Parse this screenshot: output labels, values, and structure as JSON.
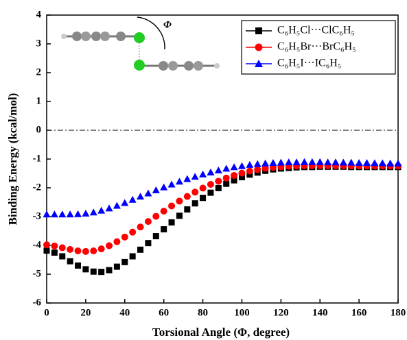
{
  "chart_data": {
    "type": "scatter",
    "xlabel": "Torsional Angle (Φ, degree)",
    "ylabel": "Binding Energy (kcal/mol)",
    "annotations": [
      "Φ"
    ],
    "reference_line": 0,
    "xlim": [
      0,
      180
    ],
    "xticks": [
      0,
      20,
      40,
      60,
      80,
      100,
      120,
      140,
      160,
      180
    ],
    "ylim": [
      -6,
      4
    ],
    "yticks": [
      -6,
      -5,
      -4,
      -3,
      -2,
      -1,
      0,
      1,
      2,
      3,
      4
    ],
    "legend": "upper right",
    "x": [
      0,
      4,
      8,
      12,
      16,
      20,
      24,
      28,
      32,
      36,
      40,
      44,
      48,
      52,
      56,
      60,
      64,
      68,
      72,
      76,
      80,
      84,
      88,
      92,
      96,
      100,
      104,
      108,
      112,
      116,
      120,
      124,
      128,
      132,
      136,
      140,
      144,
      148,
      152,
      156,
      160,
      164,
      168,
      172,
      176,
      180
    ],
    "series": [
      {
        "name": "C₆H₅Cl···ClC₆H₅",
        "color": "#000000",
        "marker": "square",
        "values": [
          -4.18,
          -4.25,
          -4.38,
          -4.55,
          -4.7,
          -4.83,
          -4.91,
          -4.92,
          -4.86,
          -4.74,
          -4.58,
          -4.38,
          -4.15,
          -3.92,
          -3.68,
          -3.44,
          -3.2,
          -2.97,
          -2.75,
          -2.54,
          -2.35,
          -2.17,
          -2.01,
          -1.86,
          -1.74,
          -1.63,
          -1.54,
          -1.47,
          -1.41,
          -1.36,
          -1.33,
          -1.31,
          -1.29,
          -1.28,
          -1.28,
          -1.27,
          -1.27,
          -1.27,
          -1.27,
          -1.28,
          -1.28,
          -1.28,
          -1.28,
          -1.28,
          -1.28,
          -1.28
        ]
      },
      {
        "name": "C₆H₅Br···BrC₆H₅",
        "color": "#ff0000",
        "marker": "circle",
        "values": [
          -3.98,
          -4.02,
          -4.08,
          -4.14,
          -4.19,
          -4.21,
          -4.19,
          -4.12,
          -4.01,
          -3.87,
          -3.71,
          -3.54,
          -3.36,
          -3.17,
          -2.99,
          -2.81,
          -2.63,
          -2.46,
          -2.3,
          -2.15,
          -2.01,
          -1.88,
          -1.77,
          -1.66,
          -1.57,
          -1.49,
          -1.42,
          -1.37,
          -1.32,
          -1.29,
          -1.27,
          -1.25,
          -1.24,
          -1.23,
          -1.23,
          -1.23,
          -1.23,
          -1.23,
          -1.23,
          -1.24,
          -1.24,
          -1.24,
          -1.24,
          -1.24,
          -1.24,
          -1.24
        ]
      },
      {
        "name": "C₆H₅I···IC₆H₅",
        "color": "#0000ff",
        "marker": "triangle",
        "values": [
          -2.92,
          -2.92,
          -2.92,
          -2.92,
          -2.91,
          -2.89,
          -2.85,
          -2.79,
          -2.71,
          -2.62,
          -2.52,
          -2.41,
          -2.3,
          -2.19,
          -2.08,
          -1.98,
          -1.88,
          -1.78,
          -1.69,
          -1.61,
          -1.53,
          -1.46,
          -1.39,
          -1.33,
          -1.28,
          -1.24,
          -1.2,
          -1.17,
          -1.15,
          -1.13,
          -1.12,
          -1.11,
          -1.11,
          -1.1,
          -1.1,
          -1.1,
          -1.11,
          -1.11,
          -1.12,
          -1.12,
          -1.13,
          -1.13,
          -1.14,
          -1.14,
          -1.15,
          -1.15
        ]
      }
    ]
  }
}
